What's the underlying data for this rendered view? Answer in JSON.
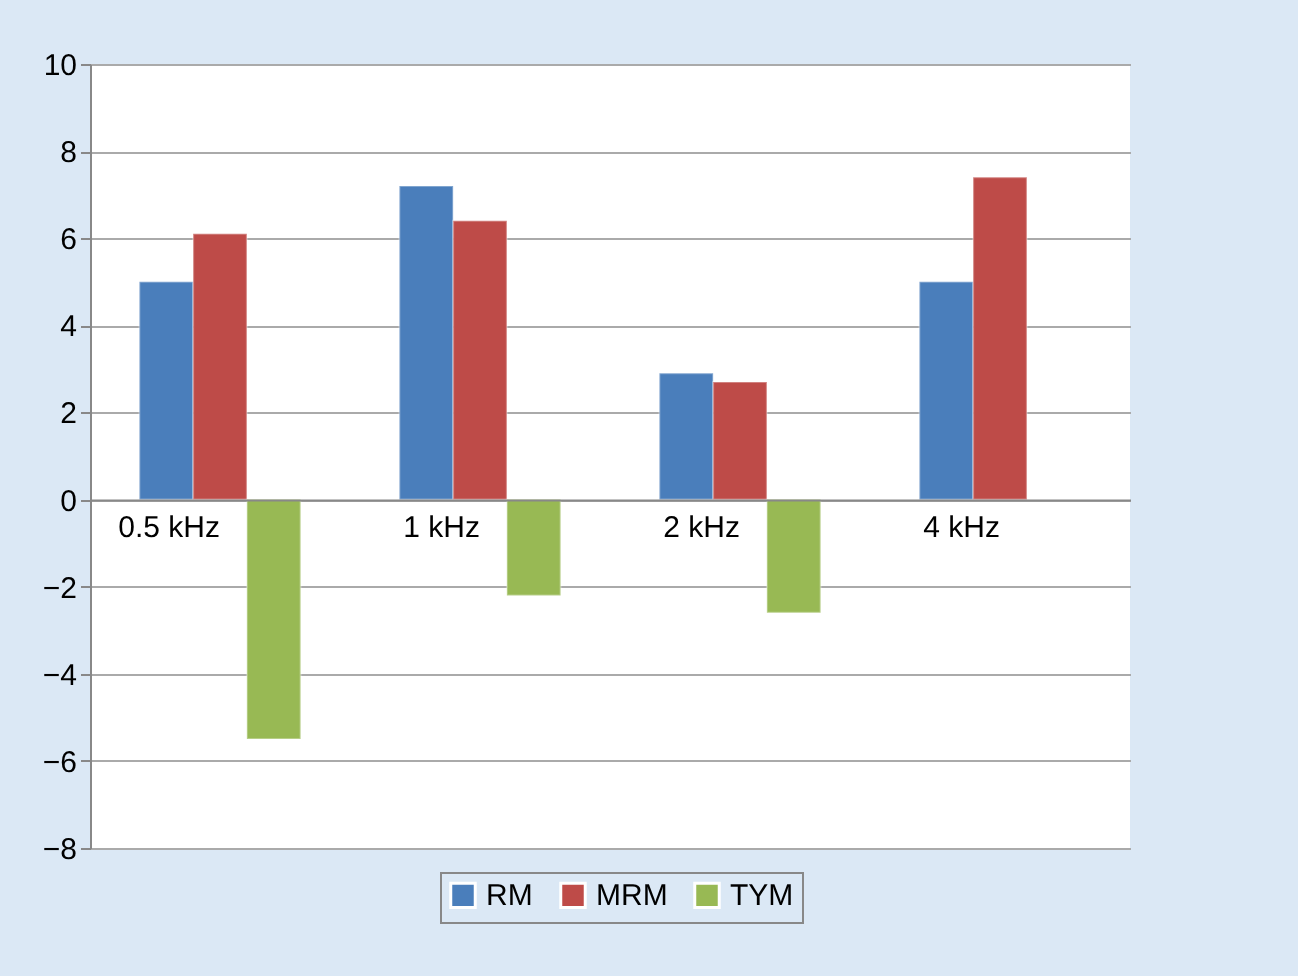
{
  "chart_data": {
    "type": "bar",
    "categories": [
      "0.5 kHz",
      "1 kHz",
      "2 kHz",
      "4 kHz"
    ],
    "series": [
      {
        "name": "RM",
        "color": "#4a7ebb",
        "values": [
          5.0,
          7.2,
          2.9,
          5.0
        ]
      },
      {
        "name": "MRM",
        "color": "#be4b48",
        "values": [
          6.1,
          6.4,
          2.7,
          7.4
        ]
      },
      {
        "name": "TYM",
        "color": "#98b954",
        "values": [
          -5.5,
          -2.2,
          -2.6,
          null
        ]
      }
    ],
    "ylim": [
      -8,
      10
    ],
    "yticks": [
      -8,
      -6,
      -4,
      -2,
      0,
      2,
      4,
      6,
      8,
      10
    ],
    "grid": "y",
    "legend": "bottom"
  }
}
